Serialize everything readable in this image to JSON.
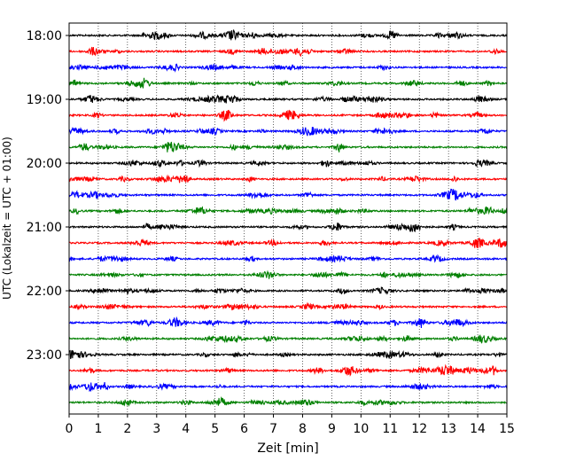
{
  "chart_data": {
    "type": "line",
    "title": "",
    "xlabel": "Zeit  [min]",
    "ylabel": "UTC (Lokalzeit = UTC + 01:00)",
    "xlim": [
      0,
      15
    ],
    "xticks": [
      0,
      1,
      2,
      3,
      4,
      5,
      6,
      7,
      8,
      9,
      10,
      11,
      12,
      13,
      14,
      15
    ],
    "yticks": [
      "18:00",
      "19:00",
      "20:00",
      "21:00",
      "22:00",
      "23:00"
    ],
    "grid": "vertical dotted at each minute",
    "trace_interval_minutes": 15,
    "trace_start_times": [
      "18:00",
      "18:15",
      "18:30",
      "18:45",
      "19:00",
      "19:15",
      "19:30",
      "19:45",
      "20:00",
      "20:15",
      "20:30",
      "20:45",
      "21:00",
      "21:15",
      "21:30",
      "21:45",
      "22:00",
      "22:15",
      "22:30",
      "22:45",
      "23:00",
      "23:15",
      "23:30",
      "23:45"
    ],
    "trace_colors": [
      "#000000",
      "#ff0000",
      "#0000ff",
      "#008000"
    ]
  }
}
